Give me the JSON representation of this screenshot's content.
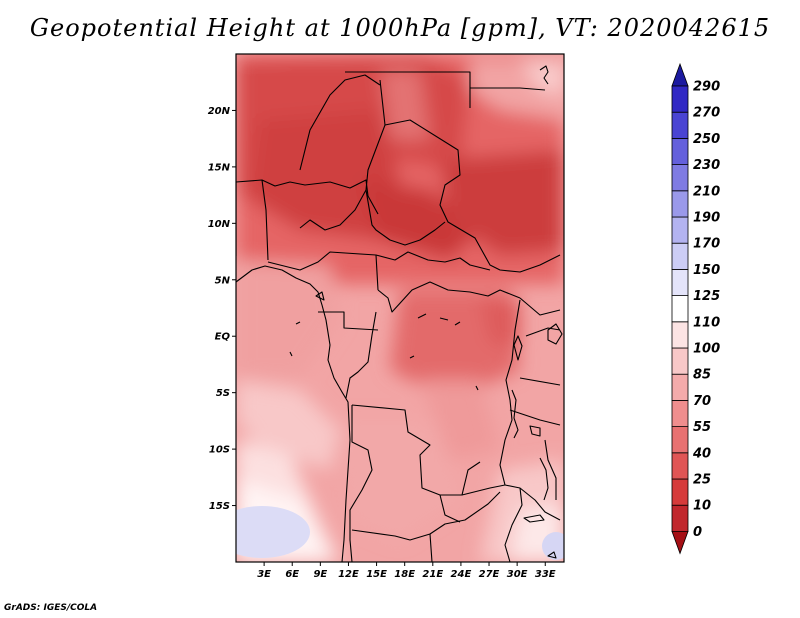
{
  "title": "Geopotential Height at 1000hPa [gpm], VT: 2020042615",
  "credit": "GrADS: IGES/COLA",
  "map": {
    "lon_range": [
      0,
      35
    ],
    "lat_range": [
      -20,
      25
    ],
    "lat_ticks": [
      {
        "value": 20,
        "label": "20N"
      },
      {
        "value": 15,
        "label": "15N"
      },
      {
        "value": 10,
        "label": "10N"
      },
      {
        "value": 5,
        "label": "5N"
      },
      {
        "value": 0,
        "label": "EQ"
      },
      {
        "value": -5,
        "label": "5S"
      },
      {
        "value": -10,
        "label": "10S"
      },
      {
        "value": -15,
        "label": "15S"
      }
    ],
    "lon_ticks": [
      {
        "value": 3,
        "label": "3E"
      },
      {
        "value": 6,
        "label": "6E"
      },
      {
        "value": 9,
        "label": "9E"
      },
      {
        "value": 12,
        "label": "12E"
      },
      {
        "value": 15,
        "label": "15E"
      },
      {
        "value": 18,
        "label": "18E"
      },
      {
        "value": 21,
        "label": "21E"
      },
      {
        "value": 24,
        "label": "24E"
      },
      {
        "value": 27,
        "label": "27E"
      },
      {
        "value": 30,
        "label": "30E"
      },
      {
        "value": 33,
        "label": "33E"
      }
    ]
  },
  "colorbar": {
    "levels": [
      "0",
      "10",
      "25",
      "40",
      "55",
      "70",
      "85",
      "100",
      "110",
      "125",
      "150",
      "170",
      "190",
      "210",
      "230",
      "250",
      "270",
      "290"
    ],
    "colors": [
      "#a50f15",
      "#c1272d",
      "#d63b3b",
      "#e05555",
      "#e87171",
      "#ef8e8e",
      "#f4abab",
      "#f8c8c8",
      "#fce4e4",
      "#ffffff",
      "#e4e4fa",
      "#cccdf5",
      "#b3b3f0",
      "#9a99ea",
      "#7f7be3",
      "#6460dc",
      "#4a44d3",
      "#3128c4",
      "#1c1aa0"
    ]
  }
}
